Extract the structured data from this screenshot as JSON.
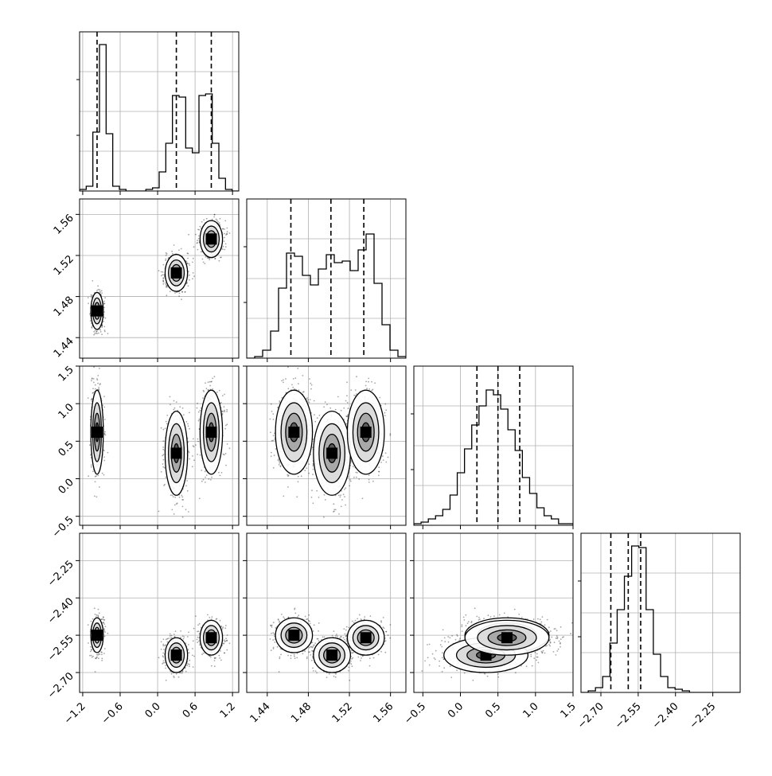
{
  "chart_data": {
    "type": "corner",
    "parameters": 4,
    "ticks": [
      [
        "−1.2",
        "−0.6",
        "0.0",
        "0.6",
        "1.2"
      ],
      [
        "1.44",
        "1.48",
        "1.52",
        "1.56"
      ],
      [
        "−0.5",
        "0.0",
        "0.5",
        "1.0",
        "1.5"
      ],
      [
        "−2.70",
        "−2.55",
        "−2.40",
        "−2.25"
      ]
    ],
    "tick_values": [
      [
        -1.2,
        -0.6,
        0.0,
        0.6,
        1.2
      ],
      [
        1.44,
        1.48,
        1.52,
        1.56
      ],
      [
        -0.5,
        0.0,
        0.5,
        1.0,
        1.5
      ],
      [
        -2.7,
        -2.55,
        -2.4,
        -2.25
      ]
    ],
    "ranges": [
      [
        -1.25,
        1.3
      ],
      [
        1.42,
        1.575
      ],
      [
        -0.62,
        1.5
      ],
      [
        -2.78,
        -2.14
      ]
    ],
    "quantiles": [
      [
        -0.97,
        0.3,
        0.86
      ],
      [
        1.463,
        1.502,
        1.534
      ],
      [
        0.22,
        0.5,
        0.79
      ],
      [
        -2.66,
        -2.59,
        -2.54
      ]
    ],
    "histograms": [
      [
        0.01,
        0.03,
        0.37,
        0.92,
        0.36,
        0.03,
        0.01,
        0.0,
        0.0,
        0.0,
        0.01,
        0.02,
        0.12,
        0.3,
        0.6,
        0.59,
        0.27,
        0.24,
        0.6,
        0.61,
        0.3,
        0.08,
        0.01,
        0.0
      ],
      [
        0.0,
        0.01,
        0.05,
        0.17,
        0.44,
        0.66,
        0.64,
        0.52,
        0.46,
        0.56,
        0.65,
        0.6,
        0.61,
        0.55,
        0.68,
        0.78,
        0.47,
        0.21,
        0.05,
        0.01
      ],
      [
        0.01,
        0.02,
        0.04,
        0.06,
        0.1,
        0.19,
        0.33,
        0.48,
        0.63,
        0.75,
        0.85,
        0.82,
        0.73,
        0.6,
        0.47,
        0.3,
        0.2,
        0.11,
        0.06,
        0.04,
        0.01,
        0.01
      ],
      [
        0.0,
        0.01,
        0.03,
        0.1,
        0.31,
        0.52,
        0.73,
        0.92,
        0.91,
        0.52,
        0.24,
        0.1,
        0.03,
        0.02,
        0.01,
        0.0,
        0.0,
        0.0,
        0.0,
        0.0,
        0.0,
        0.0
      ]
    ],
    "clusters": [
      {
        "w": 0.32,
        "mean": [
          -0.97,
          1.466,
          0.62,
          -2.55
        ],
        "sd": [
          0.05,
          0.009,
          0.28,
          0.035
        ]
      },
      {
        "w": 0.34,
        "mean": [
          0.3,
          1.503,
          0.34,
          -2.63
        ],
        "sd": [
          0.09,
          0.009,
          0.28,
          0.035
        ]
      },
      {
        "w": 0.34,
        "mean": [
          0.86,
          1.536,
          0.62,
          -2.56
        ],
        "sd": [
          0.09,
          0.009,
          0.28,
          0.035
        ]
      }
    ],
    "grid": true
  }
}
